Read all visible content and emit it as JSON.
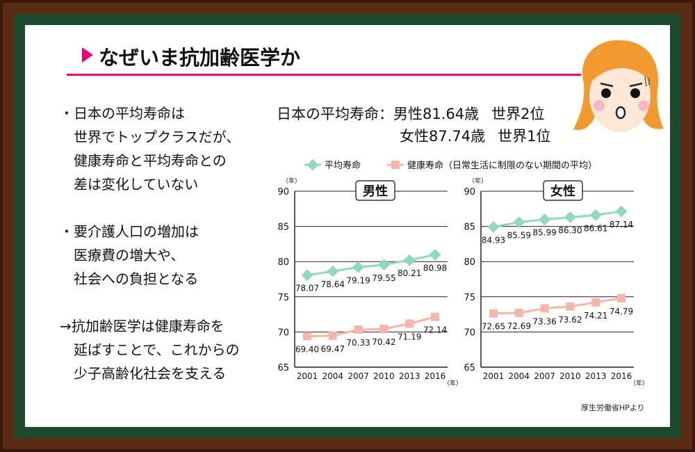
{
  "title": "なぜいま抗加齢医学か",
  "bullets": [
    [
      "・日本の平均寿命は",
      "　世界でトップクラスだが、",
      "　健康寿命と平均寿命との",
      "　差は変化していない"
    ],
    [
      "・要介護人口の増加は",
      "　医療費の増大や、",
      "　社会への負担となる"
    ],
    [
      "→抗加齢医学は健康寿命を",
      "　延ばすことで、これからの",
      "　少子高齢化社会を支える"
    ]
  ],
  "stats": {
    "label": "日本の平均寿命：",
    "male": "男性81.64歳",
    "male_rank": "世界2位",
    "female": "女性87.74歳",
    "female_rank": "世界1位"
  },
  "source": "厚生労働省HPより",
  "colors": {
    "average": "#8fd8c2",
    "healthy": "#f5b5a8",
    "accent": "#e6007e"
  },
  "chart_data": [
    {
      "type": "line",
      "title": "男性",
      "x": [
        "2001",
        "2004",
        "2007",
        "2010",
        "2013",
        "2016"
      ],
      "ylabel": "（年）",
      "xlabel": "（年）",
      "ylim": [
        65,
        90
      ],
      "yticks": [
        "65",
        "70",
        "75",
        "80",
        "85",
        "90"
      ],
      "grid": true,
      "legend": [
        "平均寿命",
        "健康寿命（日常生活に制限のない期間の平均）"
      ],
      "legend_position": "top",
      "series": [
        {
          "name": "平均寿命",
          "values": [
            78.07,
            78.64,
            79.19,
            79.55,
            80.21,
            80.98
          ],
          "labels": [
            "78.07",
            "78.64",
            "79.19",
            "79.55",
            "80.21",
            "80.98"
          ]
        },
        {
          "name": "健康寿命（日常生活に制限のない期間の平均）",
          "values": [
            69.4,
            69.47,
            70.33,
            70.42,
            71.19,
            72.14
          ],
          "labels": [
            "69.40",
            "69.47",
            "70.33",
            "70.42",
            "71.19",
            "72.14"
          ]
        }
      ]
    },
    {
      "type": "line",
      "title": "女性",
      "x": [
        "2001",
        "2004",
        "2007",
        "2010",
        "2013",
        "2016"
      ],
      "ylabel": "（年）",
      "xlabel": "（年）",
      "ylim": [
        65,
        90
      ],
      "yticks": [
        "65",
        "70",
        "75",
        "80",
        "85",
        "90"
      ],
      "grid": true,
      "series": [
        {
          "name": "平均寿命",
          "values": [
            84.93,
            85.59,
            85.99,
            86.3,
            86.61,
            87.14
          ],
          "labels": [
            "84.93",
            "85.59",
            "85.99",
            "86.30",
            "86.61",
            "87.14"
          ]
        },
        {
          "name": "健康寿命（日常生活に制限のない期間の平均）",
          "values": [
            72.65,
            72.69,
            73.36,
            73.62,
            74.21,
            74.79
          ],
          "labels": [
            "72.65",
            "72.69",
            "73.36",
            "73.62",
            "74.21",
            "74.79"
          ]
        }
      ]
    }
  ]
}
